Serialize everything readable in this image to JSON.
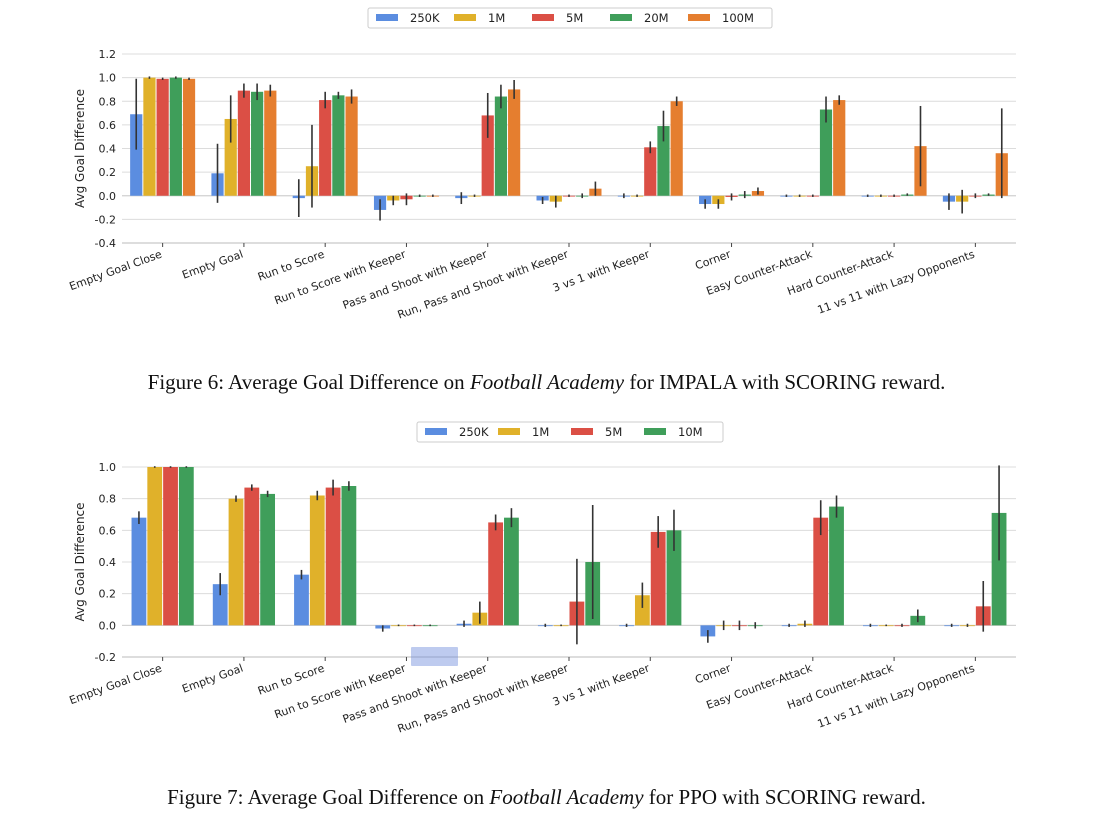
{
  "colors": {
    "250K": "#5b8de0",
    "1M": "#e0b12a",
    "5M": "#db4f45",
    "20M": "#3f9e5a",
    "10M": "#3f9e5a",
    "100M": "#e57e2f"
  },
  "chart_data": [
    {
      "type": "bar",
      "ylabel": "Avg Goal Difference",
      "ylim": [
        -0.4,
        1.2
      ],
      "yticks": [
        "-0.4",
        "-0.2",
        "0.0",
        "0.2",
        "0.4",
        "0.6",
        "0.8",
        "1.0",
        "1.2"
      ],
      "legend_position": "top-center",
      "categories": [
        "Empty Goal Close",
        "Empty Goal",
        "Run to Score",
        "Run to Score with Keeper",
        "Pass  and  Shoot  with  Keeper",
        "Run, Pass and Shoot with Keeper",
        "3 vs 1 with Keeper",
        "Corner",
        "Easy  Counter-Attack",
        "Hard  Counter-Attack",
        "11  vs  11  with  Lazy  Opponents"
      ],
      "series": [
        {
          "name": "250K",
          "values": [
            0.69,
            0.19,
            -0.02,
            -0.12,
            -0.02,
            -0.04,
            0.0,
            -0.07,
            0.0,
            0.0,
            -0.05
          ],
          "err": [
            0.3,
            0.25,
            0.16,
            0.09,
            0.05,
            0.03,
            0.02,
            0.04,
            0.01,
            0.01,
            0.07
          ]
        },
        {
          "name": "1M",
          "values": [
            1.0,
            0.65,
            0.25,
            -0.04,
            0.0,
            -0.05,
            0.0,
            -0.07,
            0.0,
            0.0,
            -0.05
          ],
          "err": [
            0.01,
            0.2,
            0.35,
            0.04,
            0.01,
            0.05,
            0.01,
            0.04,
            0.01,
            0.01,
            0.1
          ]
        },
        {
          "name": "5M",
          "values": [
            0.99,
            0.89,
            0.81,
            -0.03,
            0.68,
            0.0,
            0.41,
            -0.01,
            0.0,
            0.0,
            0.0
          ],
          "err": [
            0.01,
            0.06,
            0.07,
            0.05,
            0.19,
            0.01,
            0.05,
            0.03,
            0.01,
            0.01,
            0.02
          ]
        },
        {
          "name": "20M",
          "values": [
            1.0,
            0.88,
            0.85,
            0.0,
            0.84,
            0.0,
            0.59,
            0.01,
            0.73,
            0.01,
            0.01
          ],
          "err": [
            0.01,
            0.07,
            0.03,
            0.01,
            0.1,
            0.02,
            0.13,
            0.03,
            0.11,
            0.01,
            0.01
          ]
        },
        {
          "name": "100M",
          "values": [
            0.99,
            0.89,
            0.84,
            0.0,
            0.9,
            0.06,
            0.8,
            0.04,
            0.81,
            0.42,
            0.36
          ],
          "err": [
            0.01,
            0.05,
            0.06,
            0.01,
            0.08,
            0.06,
            0.04,
            0.03,
            0.04,
            0.34,
            0.38
          ]
        }
      ]
    },
    {
      "type": "bar",
      "ylabel": "Avg Goal Difference",
      "ylim": [
        -0.2,
        1.0
      ],
      "yticks": [
        "-0.2",
        "0.0",
        "0.2",
        "0.4",
        "0.6",
        "0.8",
        "1.0"
      ],
      "legend_position": "top-center",
      "categories": [
        "Empty Goal Close",
        "Empty Goal",
        "Run to Score",
        "Run to Score with Keeper",
        "Pass  and  Shoot  with  Keeper",
        "Run, Pass and Shoot with Keeper",
        "3 vs 1 with Keeper",
        "Corner",
        "Easy  Counter-Attack",
        "Hard  Counter-Attack",
        "11  vs  11  with  Lazy  Opponents"
      ],
      "series": [
        {
          "name": "250K",
          "values": [
            0.68,
            0.26,
            0.32,
            -0.02,
            0.01,
            0.0,
            0.0,
            -0.07,
            0.0,
            0.0,
            0.0
          ],
          "err": [
            0.04,
            0.07,
            0.03,
            0.02,
            0.02,
            0.01,
            0.01,
            0.04,
            0.01,
            0.01,
            0.01
          ]
        },
        {
          "name": "1M",
          "values": [
            1.0,
            0.8,
            0.82,
            0.0,
            0.08,
            0.0,
            0.19,
            0.0,
            0.01,
            0.0,
            0.0
          ],
          "err": [
            0.005,
            0.02,
            0.03,
            0.005,
            0.07,
            0.005,
            0.08,
            0.03,
            0.02,
            0.005,
            0.01
          ]
        },
        {
          "name": "5M",
          "values": [
            1.0,
            0.87,
            0.87,
            0.0,
            0.65,
            0.15,
            0.59,
            0.0,
            0.68,
            0.0,
            0.12
          ],
          "err": [
            0.005,
            0.02,
            0.05,
            0.005,
            0.05,
            0.27,
            0.1,
            0.03,
            0.11,
            0.01,
            0.16
          ]
        },
        {
          "name": "10M",
          "values": [
            1.0,
            0.83,
            0.88,
            0.0,
            0.68,
            0.4,
            0.6,
            0.0,
            0.75,
            0.06,
            0.71
          ],
          "err": [
            0.005,
            0.02,
            0.03,
            0.005,
            0.06,
            0.36,
            0.13,
            0.02,
            0.07,
            0.04,
            0.3
          ]
        }
      ]
    }
  ],
  "captions": {
    "fig6": {
      "pre": "Figure 6: Average Goal Difference on ",
      "em": "Football Academy",
      "mid": " for IMPALA with S",
      "sc": "CORING",
      "post": " reward."
    },
    "fig7": {
      "pre": "Figure 7: Average Goal Difference on ",
      "em": "Football Academy",
      "mid": " for PPO with S",
      "sc": "CORING",
      "post": " reward."
    }
  }
}
